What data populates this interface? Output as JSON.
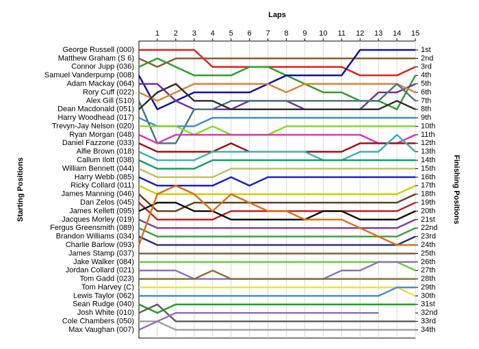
{
  "chart_data": {
    "type": "line",
    "title": "Laps",
    "y_label": "Starting Positions",
    "y2_label": "Finishing Positions",
    "x": [
      0,
      1,
      2,
      3,
      4,
      5,
      6,
      7,
      8,
      9,
      10,
      11,
      12,
      13,
      14,
      15
    ],
    "xlim": [
      0,
      15
    ],
    "xticks": [
      1,
      2,
      3,
      4,
      5,
      6,
      7,
      8,
      9,
      10,
      11,
      12,
      13,
      14,
      15
    ],
    "ylim": [
      1,
      34
    ],
    "grid": true,
    "finishing_labels": [
      "1st",
      "2nd",
      "3rd",
      "4th",
      "5th",
      "6th",
      "7th",
      "8th",
      "9th",
      "10th",
      "11th",
      "12th",
      "13th",
      "14th",
      "15th",
      "16th",
      "17th",
      "18th",
      "19th",
      "20th",
      "21st",
      "22nd",
      "23rd",
      "24th",
      "25th",
      "26th",
      "27th",
      "28th",
      "29th",
      "30th",
      "31st",
      "32nd",
      "33rd",
      "34th"
    ],
    "series": [
      {
        "name": "George Russell (000)",
        "color": "#e02020",
        "values": [
          1,
          1,
          1,
          1,
          3,
          3,
          3,
          3,
          3,
          3,
          3,
          3,
          4,
          4,
          4,
          3
        ]
      },
      {
        "name": "Matthew Graham (S 6)",
        "color": "#8b5a2b",
        "values": [
          2,
          3,
          2,
          2,
          2,
          2,
          2,
          2,
          2,
          2,
          2,
          2,
          2,
          2,
          2,
          2
        ]
      },
      {
        "name": "Connor Jupp (036)",
        "color": "#2aa02a",
        "values": [
          3,
          2,
          3,
          4,
          4,
          4,
          3,
          3,
          4,
          5,
          6,
          6,
          7,
          7,
          8,
          4
        ]
      },
      {
        "name": "Samuel Vanderpump (008)",
        "color": "#1010a0",
        "values": [
          4,
          8,
          7,
          6,
          6,
          6,
          6,
          5,
          4,
          4,
          4,
          4,
          1,
          1,
          1,
          1
        ]
      },
      {
        "name": "Adam Mackay (064)",
        "color": "#7030a0",
        "values": [
          5,
          5,
          7,
          8,
          8,
          8,
          7,
          7,
          7,
          8,
          8,
          8,
          8,
          6,
          6,
          5
        ]
      },
      {
        "name": "Rory Cuff (022)",
        "color": "#e08030",
        "values": [
          6,
          7,
          6,
          5,
          5,
          5,
          5,
          5,
          6,
          5,
          5,
          5,
          5,
          5,
          5,
          6
        ]
      },
      {
        "name": "Alex Gill (S10)",
        "color": "#4a7878",
        "values": [
          7,
          12,
          12,
          8,
          8,
          7,
          7,
          7,
          7,
          7,
          7,
          7,
          7,
          7,
          5,
          7
        ]
      },
      {
        "name": "Dean Macdonald (051)",
        "color": "#303030",
        "values": [
          8,
          6,
          5,
          7,
          7,
          8,
          8,
          8,
          8,
          8,
          8,
          8,
          8,
          8,
          7,
          8
        ]
      },
      {
        "name": "Harry Woodhead (017)",
        "color": "#3b8fd0",
        "values": [
          9,
          10,
          10,
          10,
          9,
          9,
          9,
          9,
          9,
          9,
          9,
          9,
          9,
          9,
          9,
          9
        ]
      },
      {
        "name": "Trevyn-Jay Nelson (020)",
        "color": "#80e020",
        "values": [
          10,
          10,
          10,
          11,
          10,
          11,
          11,
          11,
          10,
          10,
          10,
          10,
          10,
          10,
          10,
          10
        ]
      },
      {
        "name": "Ryan Morgan (048)",
        "color": "#e030c0",
        "values": [
          11,
          12,
          11,
          11,
          11,
          11,
          11,
          11,
          11,
          11,
          11,
          11,
          11,
          12,
          12,
          11
        ]
      },
      {
        "name": "Daniel Fazzone (033)",
        "color": "#a01010",
        "values": [
          12,
          13,
          13,
          13,
          13,
          12,
          13,
          13,
          13,
          13,
          13,
          13,
          12,
          12,
          12,
          12
        ]
      },
      {
        "name": "Alfie Brown (018)",
        "color": "#40b0b0",
        "values": [
          13,
          14,
          14,
          14,
          13,
          13,
          13,
          13,
          13,
          13,
          14,
          14,
          13,
          13,
          11,
          13
        ]
      },
      {
        "name": "Callum Ilott (038)",
        "color": "#10a060",
        "values": [
          14,
          15,
          15,
          15,
          14,
          14,
          14,
          14,
          14,
          14,
          14,
          14,
          14,
          14,
          14,
          14
        ]
      },
      {
        "name": "William Bennett (044)",
        "color": "#c0c060",
        "values": [
          15,
          16,
          16,
          16,
          16,
          15,
          15,
          15,
          15,
          15,
          15,
          15,
          15,
          15,
          15,
          15
        ]
      },
      {
        "name": "Harry Webb (085)",
        "color": "#2020c0",
        "values": [
          16,
          17,
          17,
          17,
          17,
          16,
          17,
          16,
          16,
          16,
          16,
          16,
          16,
          16,
          16,
          16
        ]
      },
      {
        "name": "Ricky Collard (011)",
        "color": "#d0d000",
        "values": [
          17,
          18,
          18,
          18,
          18,
          18,
          18,
          18,
          18,
          18,
          18,
          18,
          18,
          18,
          18,
          17
        ]
      },
      {
        "name": "James Manning (046)",
        "color": "#6a4020",
        "values": [
          18,
          20,
          20,
          19,
          19,
          19,
          19,
          19,
          19,
          19,
          19,
          19,
          19,
          19,
          19,
          18
        ]
      },
      {
        "name": "Dan Zelos (045)",
        "color": "#c02020",
        "values": [
          19,
          21,
          21,
          21,
          21,
          20,
          20,
          20,
          20,
          20,
          20,
          20,
          20,
          20,
          20,
          19
        ]
      },
      {
        "name": "James Kellett (095)",
        "color": "#101010",
        "values": [
          20,
          19,
          19,
          20,
          20,
          21,
          21,
          21,
          21,
          21,
          20,
          20,
          21,
          21,
          21,
          20
        ]
      },
      {
        "name": "Jacques Morley (019)",
        "color": "#8040a0",
        "values": [
          21,
          22,
          22,
          22,
          22,
          22,
          22,
          22,
          22,
          22,
          22,
          22,
          22,
          22,
          22,
          21
        ]
      },
      {
        "name": "Fergus Greensmith (089)",
        "color": "#40a040",
        "values": [
          22,
          23,
          23,
          23,
          23,
          23,
          23,
          23,
          23,
          23,
          23,
          23,
          23,
          23,
          23,
          22
        ]
      },
      {
        "name": "Brandon Williams (034)",
        "color": "#303080",
        "values": [
          23,
          24,
          24,
          24,
          24,
          24,
          24,
          24,
          24,
          24,
          24,
          24,
          24,
          24,
          24,
          23
        ]
      },
      {
        "name": "Charlie Barlow (093)",
        "color": "#e07010",
        "values": [
          24,
          18,
          17,
          18,
          20,
          18,
          19,
          20,
          20,
          21,
          21,
          21,
          22,
          23,
          24,
          24
        ]
      },
      {
        "name": "James Stamp (037)",
        "color": "#806040",
        "values": [
          25,
          25,
          25,
          25,
          25,
          25,
          25,
          25,
          25,
          25,
          25,
          25,
          25,
          25,
          25,
          25
        ]
      },
      {
        "name": "Jake Walker (084)",
        "color": "#60d030",
        "values": [
          26,
          26,
          26,
          26,
          26,
          26,
          26,
          26,
          26,
          26,
          26,
          26,
          26,
          26,
          26,
          27
        ]
      },
      {
        "name": "Jordan Collard (021)",
        "color": "#9070c0",
        "values": [
          27,
          27,
          27,
          28,
          28,
          28,
          28,
          28,
          28,
          28,
          28,
          27,
          27,
          26,
          26,
          26
        ]
      },
      {
        "name": "Tom Gadd (023)",
        "color": "#8b7030",
        "values": [
          28,
          28,
          28,
          28,
          27,
          28,
          28,
          28,
          28,
          28,
          28,
          28,
          28,
          28,
          28,
          28
        ]
      },
      {
        "name": "Tom Harvey (C)",
        "color": "#f0e040",
        "values": [
          29,
          29,
          29,
          29,
          29,
          29,
          29,
          29,
          29,
          29,
          29,
          29,
          29,
          29,
          29,
          30
        ]
      },
      {
        "name": "Lewis Taylor (062)",
        "color": "#4090d0",
        "values": [
          30,
          30,
          30,
          30,
          30,
          30,
          30,
          30,
          30,
          30,
          30,
          30,
          30,
          30,
          29,
          29
        ]
      },
      {
        "name": "Sean Rudge (040)",
        "color": "#20a020",
        "values": [
          31,
          32,
          31,
          31,
          31,
          31,
          31,
          31,
          31,
          31,
          31,
          31,
          31,
          31,
          31,
          31
        ]
      },
      {
        "name": "Josh White (010)",
        "color": "#606060",
        "values": [
          32,
          31,
          33,
          33,
          33,
          33,
          33,
          33,
          33,
          33,
          33,
          33,
          33,
          33,
          33,
          33
        ]
      },
      {
        "name": "Cole Chambers (050)",
        "color": "#a0a0a0",
        "values": [
          33,
          33,
          34,
          34,
          34,
          34,
          34,
          34,
          34,
          34,
          34,
          34,
          34,
          34,
          34,
          34
        ]
      },
      {
        "name": "Max Vaughan (007)",
        "color": "#9070c0",
        "values": [
          34,
          33,
          32,
          32,
          32,
          32,
          32,
          32,
          32,
          32,
          32,
          32,
          32,
          32,
          null,
          null
        ]
      }
    ]
  }
}
